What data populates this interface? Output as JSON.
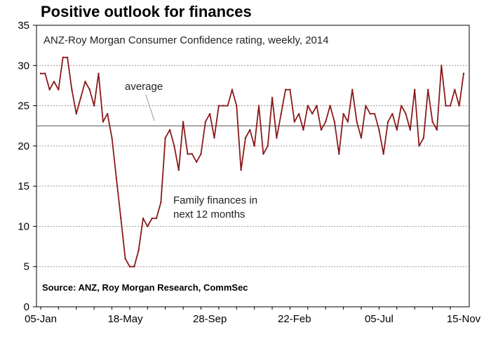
{
  "title": "Positive outlook for finances",
  "chart_data": {
    "type": "line",
    "subtitle": "ANZ-Roy Morgan Consumer Confidence rating, weekly, 2014",
    "source": "Source: ANZ, Roy Morgan Research, CommSec",
    "series_label": [
      "Family finances in",
      "next 12 months"
    ],
    "average_label": "average",
    "average_value": 22.5,
    "ylim": [
      0,
      35
    ],
    "yticks": [
      0,
      5,
      10,
      15,
      20,
      25,
      30,
      35
    ],
    "xticks": [
      "05-Jan",
      "18-May",
      "28-Sep",
      "22-Feb",
      "05-Jul",
      "15-Nov"
    ],
    "xtick_index": [
      0,
      19,
      38,
      57,
      76,
      95
    ],
    "grid": true,
    "colors": {
      "line": "#8b1a1a",
      "grid": "#999999",
      "average": "#555555"
    },
    "series": [
      {
        "values": [
          29,
          29,
          27,
          28,
          27,
          31,
          31,
          27,
          24,
          26,
          28,
          27,
          25,
          29,
          23,
          24,
          21,
          16,
          11,
          6,
          5,
          5,
          7,
          11,
          10,
          11,
          11,
          13,
          21,
          22,
          20,
          17,
          23,
          19,
          19,
          18,
          19,
          23,
          24,
          21,
          25,
          25,
          25,
          27,
          25,
          17,
          21,
          22,
          20,
          25,
          19,
          20,
          26,
          21,
          24,
          27,
          27,
          23,
          24,
          22,
          25,
          24,
          25,
          22,
          23,
          25,
          23,
          19,
          24,
          23,
          27,
          23,
          21,
          25,
          24,
          24,
          22,
          19,
          23,
          24,
          22,
          25,
          24,
          22,
          27,
          20,
          21,
          27,
          23,
          22,
          30,
          25,
          25,
          27,
          25,
          29
        ]
      }
    ]
  }
}
